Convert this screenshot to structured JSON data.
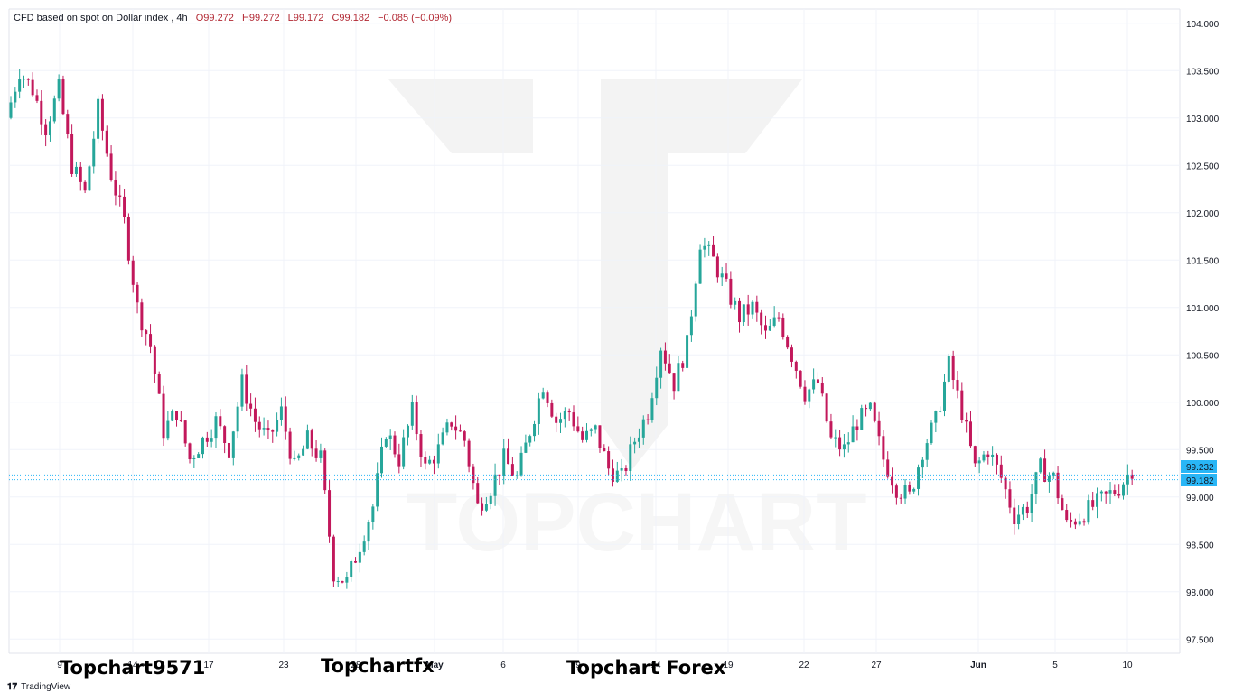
{
  "legend": {
    "symbol_desc": "CFD based on spot on Dollar index",
    "interval": "4h",
    "open": "O99.272",
    "high": "H99.272",
    "low": "L99.172",
    "close": "C99.182",
    "change": "−0.085 (−0.09%)"
  },
  "price_tags": {
    "upper": "99.232",
    "lower": "99.182"
  },
  "watermark_texts": [
    "Topchart9571",
    "Topchartfx",
    "Topchart Forex"
  ],
  "watermark_logo": "TOPCHART",
  "tradingview": "TradingView",
  "colors": {
    "up": "#26a69a",
    "down": "#c2185b",
    "tag": "#29b6f6",
    "grid": "#f0f3fa"
  },
  "chart_data": {
    "type": "candlestick",
    "y_axis_ticks": [
      "104.000",
      "103.500",
      "103.000",
      "102.500",
      "102.000",
      "101.500",
      "101.000",
      "100.500",
      "100.000",
      "99.500",
      "99.000",
      "98.500",
      "98.000",
      "97.500"
    ],
    "ylim": [
      97.35,
      104.15
    ],
    "x_axis_ticks": [
      "9",
      "14",
      "17",
      "23",
      "28",
      "May",
      "6",
      "9",
      "14",
      "19",
      "22",
      "27",
      "Jun",
      "5",
      "10"
    ],
    "price_lines": [
      99.232,
      99.182
    ],
    "series": [
      {
        "close_path": [
          103.0,
          103.5,
          103.3,
          102.9,
          103.3,
          102.5,
          102.2,
          103.1,
          102.4,
          101.9,
          101.0,
          100.6,
          99.7,
          99.9,
          99.4,
          99.6,
          99.8,
          99.5,
          100.2,
          99.8,
          99.6,
          99.9,
          99.3,
          99.6,
          99.4,
          98.2,
          98.1,
          98.5,
          98.9,
          99.7,
          99.4,
          99.9,
          99.3,
          99.5,
          99.8,
          99.6,
          98.9,
          99.1,
          99.4,
          99.2,
          99.7,
          100.2,
          99.8,
          99.9,
          99.6,
          99.7,
          99.3,
          99.2,
          99.6,
          99.9,
          100.6,
          100.2,
          100.6,
          101.7,
          101.5,
          101.2,
          100.9,
          101.0,
          100.7,
          100.9,
          100.5,
          100.1,
          100.2,
          99.6,
          99.5,
          99.8,
          99.9,
          99.4,
          99.1,
          99.0,
          99.5,
          99.8,
          100.4,
          99.9,
          99.3,
          99.5,
          99.2,
          98.8,
          98.9,
          99.3,
          99.2,
          98.7,
          98.8,
          98.9,
          99.0,
          99.1,
          99.3
        ]
      }
    ]
  }
}
